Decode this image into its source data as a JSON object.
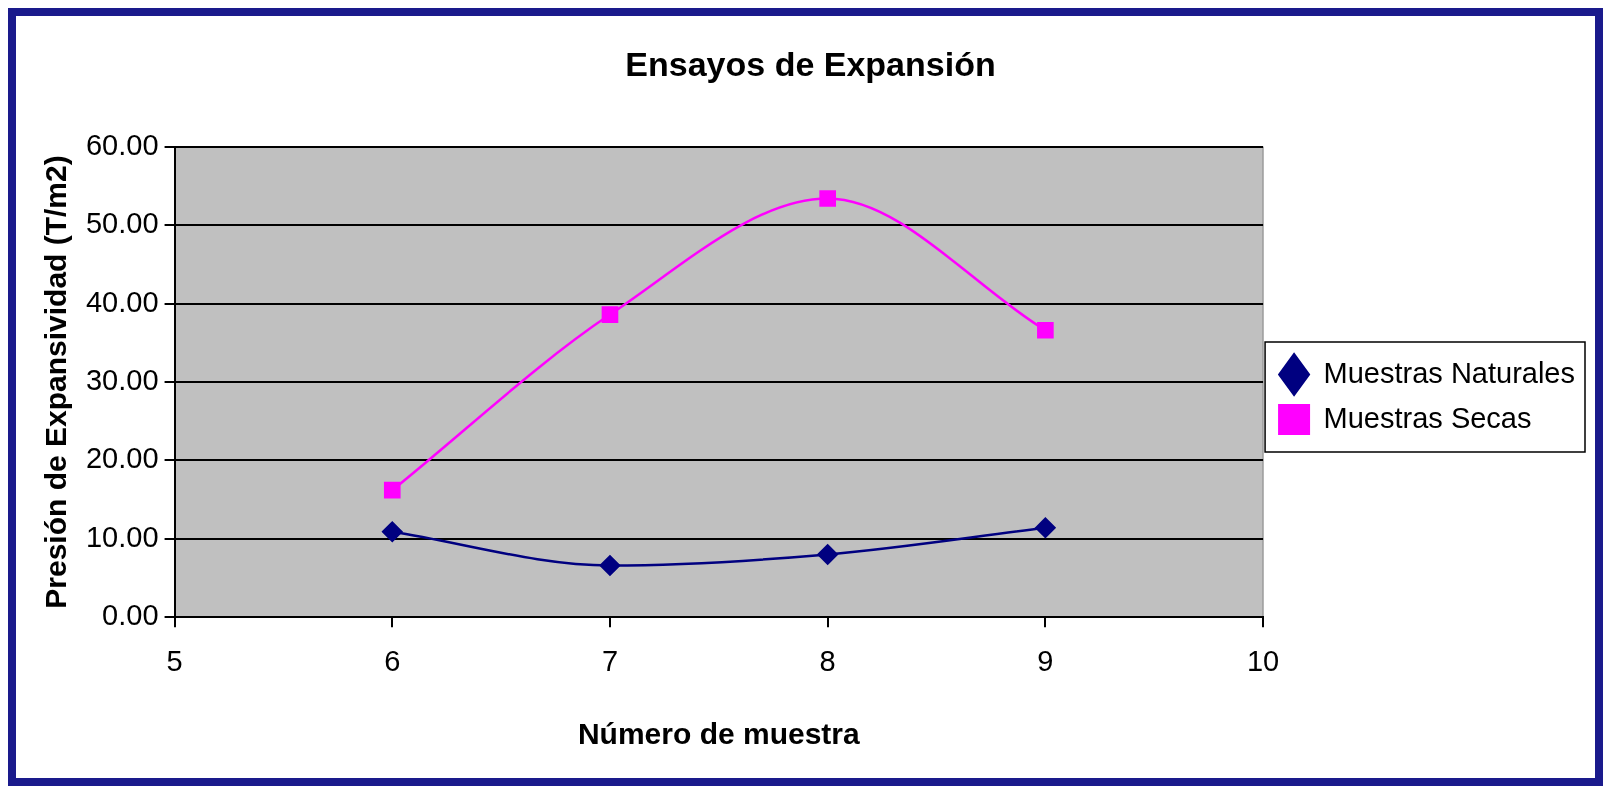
{
  "chart_data": {
    "type": "line",
    "title": "Ensayos de Expansión",
    "xlabel": "Número de muestra",
    "ylabel": "Presión de Expansividad (T/m2)",
    "x": [
      6,
      7,
      8,
      9
    ],
    "series": [
      {
        "name": "Muestras Naturales",
        "color": "#000080",
        "marker": "diamond",
        "values": [
          10.9,
          6.6,
          8.0,
          11.4
        ]
      },
      {
        "name": "Muestras Secas",
        "color": "#ff00ff",
        "marker": "square",
        "values": [
          16.2,
          38.6,
          53.4,
          36.6
        ]
      }
    ],
    "xlim": [
      5,
      10
    ],
    "xticks": [
      5,
      6,
      7,
      8,
      9,
      10
    ],
    "ylim": [
      0,
      60
    ],
    "yticks": [
      {
        "value": 0,
        "label": "0.00"
      },
      {
        "value": 10,
        "label": "10.00"
      },
      {
        "value": 20,
        "label": "20.00"
      },
      {
        "value": 30,
        "label": "30.00"
      },
      {
        "value": 40,
        "label": "40.00"
      },
      {
        "value": 50,
        "label": "50.00"
      },
      {
        "value": 60,
        "label": "60.00"
      }
    ],
    "grid": "y",
    "legend": "right",
    "line_style": "solid"
  }
}
